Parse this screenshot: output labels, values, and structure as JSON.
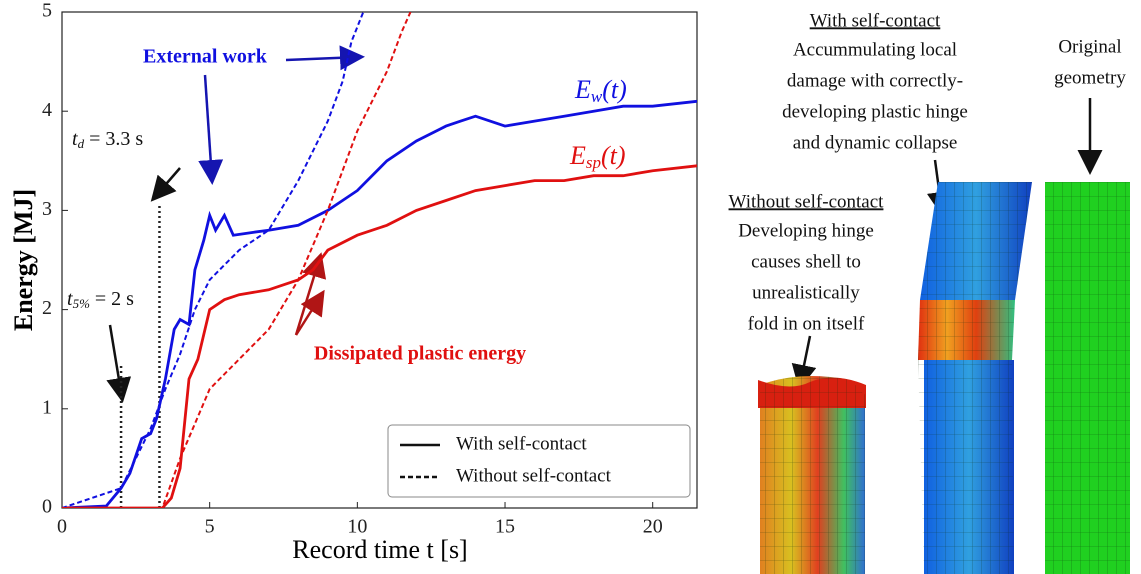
{
  "chart_data": {
    "type": "line",
    "xlabel": "Record time t [s]",
    "ylabel": "Energy [MJ]",
    "xlim": [
      0,
      21.5
    ],
    "ylim": [
      0,
      5
    ],
    "xticks": [
      0,
      5,
      10,
      15,
      20
    ],
    "yticks": [
      0,
      1,
      2,
      3,
      4,
      5
    ],
    "grid": false,
    "legend_position": "lower right",
    "legend": [
      {
        "label": "With self-contact",
        "dash": "solid"
      },
      {
        "label": "Without self-contact",
        "dash": "dashed"
      }
    ],
    "series": [
      {
        "color": "#1010e0",
        "dash": "solid",
        "x": [
          0,
          1.5,
          2,
          2.3,
          2.7,
          3,
          3.2,
          3.5,
          3.8,
          4,
          4.3,
          4.5,
          4.8,
          5,
          5.2,
          5.5,
          5.8,
          6.5,
          7,
          8,
          9,
          10,
          11,
          12,
          13,
          13.5,
          14,
          15,
          16,
          17,
          18,
          19,
          20,
          21.5
        ],
        "values": [
          0,
          0.02,
          0.2,
          0.35,
          0.7,
          0.75,
          0.9,
          1.3,
          1.8,
          1.9,
          1.85,
          2.4,
          2.7,
          2.95,
          2.8,
          2.95,
          2.75,
          2.78,
          2.8,
          2.85,
          3.0,
          3.2,
          3.5,
          3.7,
          3.85,
          3.9,
          3.95,
          3.85,
          3.9,
          3.95,
          4.0,
          4.05,
          4.05,
          4.1
        ]
      },
      {
        "color": "#e01010",
        "dash": "solid",
        "x": [
          0,
          3.4,
          3.7,
          4,
          4.3,
          4.6,
          5,
          5.5,
          6,
          7,
          7.5,
          8,
          8.5,
          9,
          10,
          11,
          12,
          13,
          14,
          15,
          16,
          17,
          18,
          19,
          20,
          21.5
        ],
        "values": [
          0,
          0,
          0.1,
          0.4,
          1.3,
          1.5,
          2.0,
          2.1,
          2.15,
          2.2,
          2.25,
          2.3,
          2.4,
          2.6,
          2.75,
          2.85,
          3.0,
          3.1,
          3.2,
          3.25,
          3.3,
          3.3,
          3.35,
          3.35,
          3.4,
          3.45
        ]
      },
      {
        "color": "#1010e0",
        "dash": "dashed",
        "x": [
          0,
          2,
          3,
          3.5,
          4,
          4.5,
          5,
          6,
          7,
          8,
          9,
          9.5,
          9.8,
          10.2
        ],
        "values": [
          0,
          0.2,
          0.8,
          1.2,
          1.55,
          2.0,
          2.3,
          2.6,
          2.8,
          3.3,
          3.9,
          4.3,
          4.7,
          5.0
        ]
      },
      {
        "color": "#e01010",
        "dash": "dashed",
        "x": [
          0,
          3.4,
          4,
          5,
          6,
          7,
          8,
          9,
          10,
          11,
          11.5,
          11.8
        ],
        "values": [
          0,
          0,
          0.5,
          1.2,
          1.5,
          1.8,
          2.3,
          3.0,
          3.8,
          4.4,
          4.8,
          5.0
        ]
      }
    ],
    "series_labels": [
      {
        "symbol": "E",
        "subscript": "w",
        "text": "(t)",
        "color": "#1010e0"
      },
      {
        "symbol": "E",
        "subscript": "sp",
        "text": "(t)",
        "color": "#e01010"
      }
    ],
    "annotations": [
      {
        "text": "External work",
        "color": "#1010e0"
      },
      {
        "text": "Dissipated plastic energy",
        "color": "#e01010"
      }
    ],
    "markers": [
      {
        "x": 3.3,
        "symbol": "t",
        "subscript": "d",
        "text": " = 3.3 s"
      },
      {
        "x": 2,
        "symbol": "t",
        "subscript": "5%",
        "text": " = 2 s"
      }
    ]
  },
  "figure_notes": {
    "with_contact": {
      "heading": "With self-contact",
      "lines": [
        "Accummulating local",
        "damage with correctly-",
        "developing plastic hinge",
        "and dynamic collapse"
      ]
    },
    "original": {
      "lines": [
        "Original",
        "geometry"
      ]
    },
    "without_contact": {
      "heading": "Without self-contact",
      "lines": [
        "Developing hinge",
        "causes shell to",
        "unrealistically",
        "fold in on itself"
      ]
    }
  }
}
